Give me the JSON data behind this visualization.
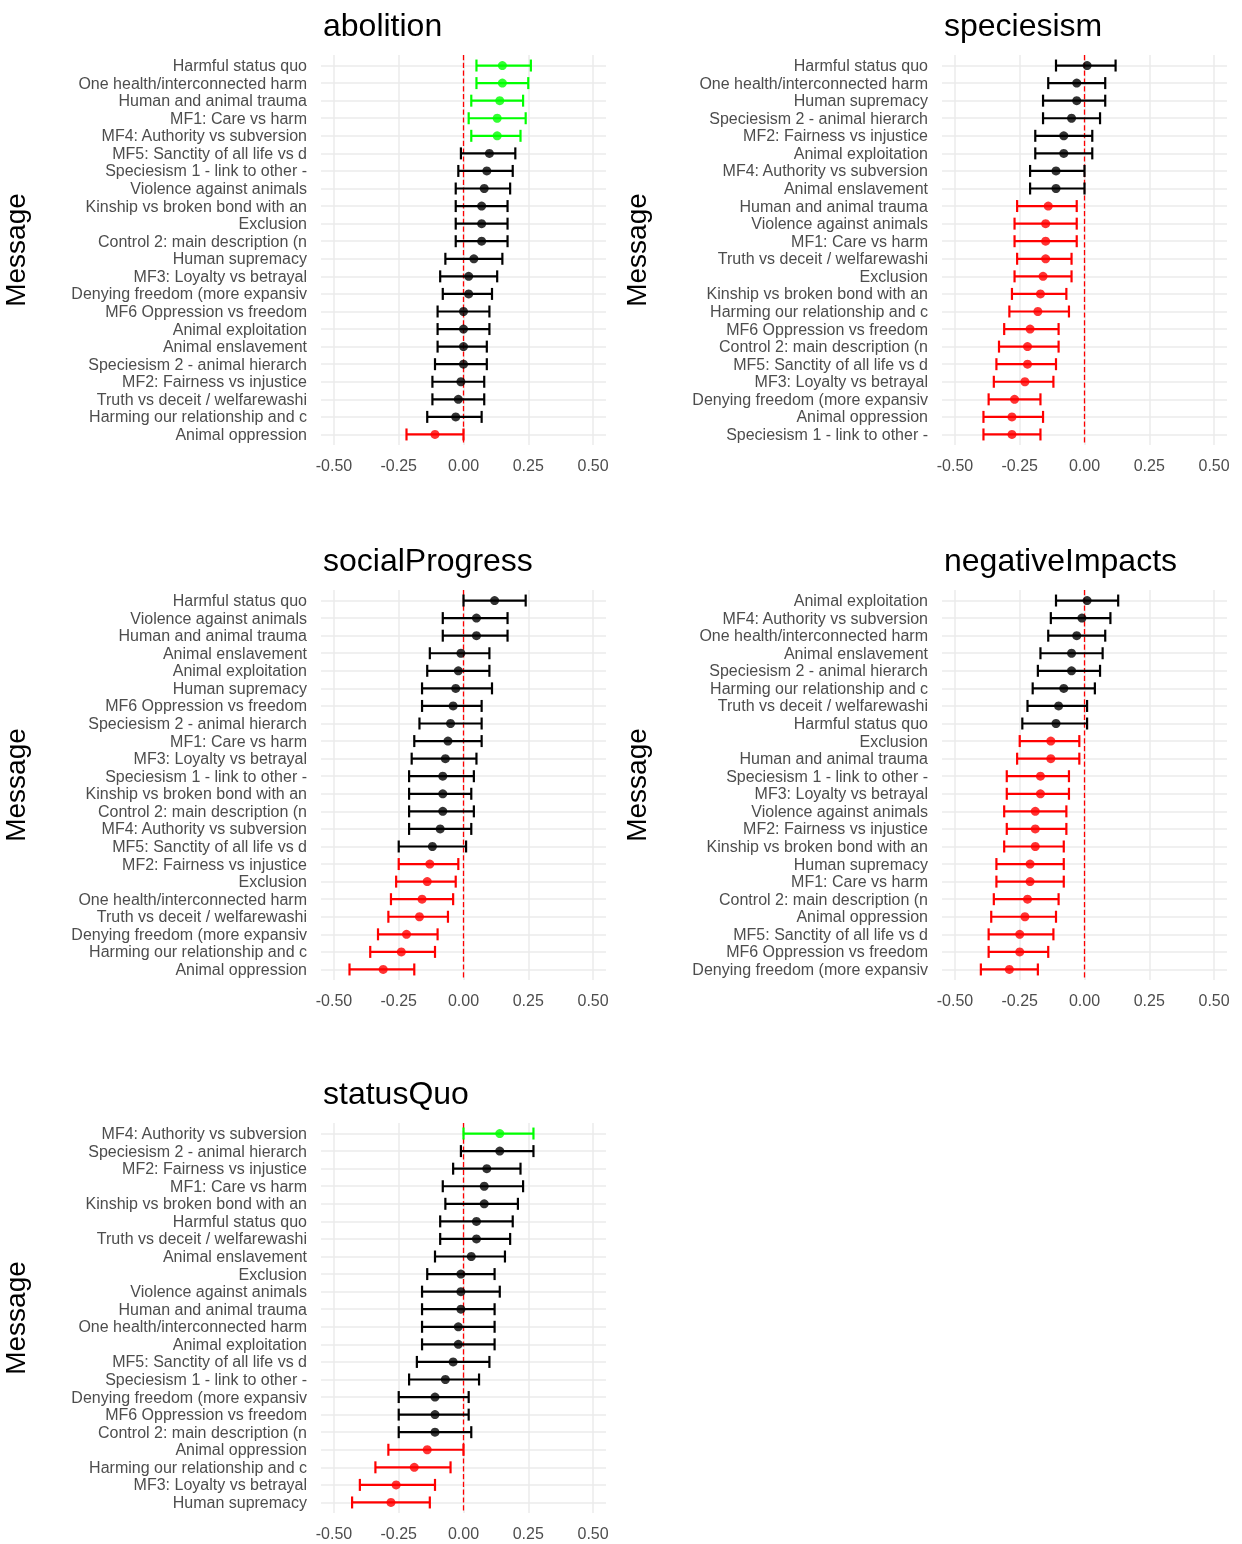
{
  "chart_data": [
    {
      "type": "scatter",
      "title": "abolition",
      "ylabel": "Message",
      "orientation": "horizontal",
      "grid": true,
      "marker": "circle",
      "xlim": [
        -0.55,
        0.55
      ],
      "xticks": [
        {
          "value": -0.5,
          "label": "-0.50"
        },
        {
          "value": -0.25,
          "label": "-0.25"
        },
        {
          "value": 0,
          "label": "0.00"
        },
        {
          "value": 0.25,
          "label": "0.25"
        },
        {
          "value": 0.5,
          "label": "0.50"
        }
      ],
      "ref_lines": [
        {
          "axis": "x",
          "value": 0,
          "color": "#ff0000",
          "line_style": "dashed"
        }
      ],
      "categories": [
        "Harmful status quo",
        "One health/interconnected harm",
        "Human and animal trauma",
        "MF1: Care vs harm",
        "MF4: Authority vs subversion",
        "MF5: Sanctity of all life vs d",
        "Speciesism 1 - link to other -",
        "Violence against animals",
        "Kinship vs broken bond with an",
        "Exclusion",
        "Control 2: main description (n",
        "Human supremacy",
        "MF3: Loyalty vs betrayal",
        "Denying freedom (more expansiv",
        "MF6 Oppression vs freedom",
        "Animal exploitation",
        "Animal enslavement",
        "Speciesism 2 - animal hierarch",
        "MF2: Fairness vs injustice",
        "Truth vs deceit / welfarewashi",
        "Harming our relationship and c",
        "Animal oppression"
      ],
      "values": [
        0.15,
        0.15,
        0.14,
        0.13,
        0.13,
        0.1,
        0.09,
        0.08,
        0.07,
        0.07,
        0.07,
        0.04,
        0.02,
        0.02,
        0.0,
        0.0,
        0.0,
        0.0,
        -0.01,
        -0.02,
        -0.03,
        -0.11
      ],
      "errors": [
        [
          0.05,
          0.26
        ],
        [
          0.05,
          0.25
        ],
        [
          0.03,
          0.23
        ],
        [
          0.02,
          0.24
        ],
        [
          0.03,
          0.22
        ],
        [
          -0.01,
          0.2
        ],
        [
          -0.02,
          0.19
        ],
        [
          -0.03,
          0.18
        ],
        [
          -0.03,
          0.17
        ],
        [
          -0.03,
          0.17
        ],
        [
          -0.03,
          0.17
        ],
        [
          -0.07,
          0.15
        ],
        [
          -0.09,
          0.13
        ],
        [
          -0.08,
          0.11
        ],
        [
          -0.1,
          0.1
        ],
        [
          -0.1,
          0.1
        ],
        [
          -0.1,
          0.09
        ],
        [
          -0.11,
          0.09
        ],
        [
          -0.12,
          0.08
        ],
        [
          -0.12,
          0.08
        ],
        [
          -0.14,
          0.07
        ],
        [
          -0.22,
          0.0
        ]
      ],
      "colors": [
        "#00ff00",
        "#00ff00",
        "#00ff00",
        "#00ff00",
        "#00ff00",
        "#000000",
        "#000000",
        "#000000",
        "#000000",
        "#000000",
        "#000000",
        "#000000",
        "#000000",
        "#000000",
        "#000000",
        "#000000",
        "#000000",
        "#000000",
        "#000000",
        "#000000",
        "#000000",
        "#ff0000"
      ]
    },
    {
      "type": "scatter",
      "title": "speciesism",
      "ylabel": "Message",
      "orientation": "horizontal",
      "grid": true,
      "marker": "circle",
      "xlim": [
        -0.55,
        0.55
      ],
      "xticks": [
        {
          "value": -0.5,
          "label": "-0.50"
        },
        {
          "value": -0.25,
          "label": "-0.25"
        },
        {
          "value": 0,
          "label": "0.00"
        },
        {
          "value": 0.25,
          "label": "0.25"
        },
        {
          "value": 0.5,
          "label": "0.50"
        }
      ],
      "ref_lines": [
        {
          "axis": "x",
          "value": 0,
          "color": "#ff0000",
          "line_style": "dashed"
        }
      ],
      "categories": [
        "Harmful status quo",
        "One health/interconnected harm",
        "Human supremacy",
        "Speciesism 2 - animal hierarch",
        "MF2: Fairness vs injustice",
        "Animal exploitation",
        "MF4: Authority vs subversion",
        "Animal enslavement",
        "Human and animal trauma",
        "Violence against animals",
        "MF1: Care vs harm",
        "Truth vs deceit / welfarewashi",
        "Exclusion",
        "Kinship vs broken bond with an",
        "Harming our relationship and c",
        "MF6 Oppression vs freedom",
        "Control 2: main description (n",
        "MF5: Sanctity of all life vs d",
        "MF3: Loyalty vs betrayal",
        "Denying freedom (more expansiv",
        "Animal oppression",
        "Speciesism 1 - link to other -"
      ],
      "values": [
        0.01,
        -0.03,
        -0.03,
        -0.05,
        -0.08,
        -0.08,
        -0.11,
        -0.11,
        -0.14,
        -0.15,
        -0.15,
        -0.15,
        -0.16,
        -0.17,
        -0.18,
        -0.21,
        -0.22,
        -0.22,
        -0.23,
        -0.27,
        -0.28,
        -0.28
      ],
      "errors": [
        [
          -0.11,
          0.12
        ],
        [
          -0.14,
          0.08
        ],
        [
          -0.16,
          0.08
        ],
        [
          -0.16,
          0.06
        ],
        [
          -0.19,
          0.03
        ],
        [
          -0.19,
          0.03
        ],
        [
          -0.21,
          0.0
        ],
        [
          -0.21,
          0.0
        ],
        [
          -0.26,
          -0.03
        ],
        [
          -0.27,
          -0.03
        ],
        [
          -0.27,
          -0.03
        ],
        [
          -0.26,
          -0.05
        ],
        [
          -0.27,
          -0.05
        ],
        [
          -0.28,
          -0.07
        ],
        [
          -0.29,
          -0.06
        ],
        [
          -0.31,
          -0.1
        ],
        [
          -0.33,
          -0.1
        ],
        [
          -0.34,
          -0.11
        ],
        [
          -0.35,
          -0.12
        ],
        [
          -0.37,
          -0.17
        ],
        [
          -0.39,
          -0.16
        ],
        [
          -0.39,
          -0.17
        ]
      ],
      "colors": [
        "#000000",
        "#000000",
        "#000000",
        "#000000",
        "#000000",
        "#000000",
        "#000000",
        "#000000",
        "#ff0000",
        "#ff0000",
        "#ff0000",
        "#ff0000",
        "#ff0000",
        "#ff0000",
        "#ff0000",
        "#ff0000",
        "#ff0000",
        "#ff0000",
        "#ff0000",
        "#ff0000",
        "#ff0000",
        "#ff0000"
      ]
    },
    {
      "type": "scatter",
      "title": "socialProgress",
      "ylabel": "Message",
      "orientation": "horizontal",
      "grid": true,
      "marker": "circle",
      "xlim": [
        -0.55,
        0.55
      ],
      "xticks": [
        {
          "value": -0.5,
          "label": "-0.50"
        },
        {
          "value": -0.25,
          "label": "-0.25"
        },
        {
          "value": 0,
          "label": "0.00"
        },
        {
          "value": 0.25,
          "label": "0.25"
        },
        {
          "value": 0.5,
          "label": "0.50"
        }
      ],
      "ref_lines": [
        {
          "axis": "x",
          "value": 0,
          "color": "#ff0000",
          "line_style": "dashed"
        }
      ],
      "categories": [
        "Harmful status quo",
        "Violence against animals",
        "Human and animal trauma",
        "Animal enslavement",
        "Animal exploitation",
        "Human supremacy",
        "MF6 Oppression vs freedom",
        "Speciesism 2 - animal hierarch",
        "MF1: Care vs harm",
        "MF3: Loyalty vs betrayal",
        "Speciesism 1 - link to other -",
        "Kinship vs broken bond with an",
        "Control 2: main description (n",
        "MF4: Authority vs subversion",
        "MF5: Sanctity of all life vs d",
        "MF2: Fairness vs injustice",
        "Exclusion",
        "One health/interconnected harm",
        "Truth vs deceit / welfarewashi",
        "Denying freedom (more expansiv",
        "Harming our relationship and c",
        "Animal oppression"
      ],
      "values": [
        0.12,
        0.05,
        0.05,
        -0.01,
        -0.02,
        -0.03,
        -0.04,
        -0.05,
        -0.06,
        -0.07,
        -0.08,
        -0.08,
        -0.08,
        -0.09,
        -0.12,
        -0.13,
        -0.14,
        -0.16,
        -0.17,
        -0.22,
        -0.24,
        -0.31
      ],
      "errors": [
        [
          0.0,
          0.24
        ],
        [
          -0.08,
          0.17
        ],
        [
          -0.08,
          0.17
        ],
        [
          -0.13,
          0.1
        ],
        [
          -0.14,
          0.1
        ],
        [
          -0.16,
          0.11
        ],
        [
          -0.16,
          0.07
        ],
        [
          -0.17,
          0.07
        ],
        [
          -0.19,
          0.07
        ],
        [
          -0.2,
          0.05
        ],
        [
          -0.21,
          0.04
        ],
        [
          -0.21,
          0.03
        ],
        [
          -0.21,
          0.04
        ],
        [
          -0.21,
          0.03
        ],
        [
          -0.25,
          0.01
        ],
        [
          -0.25,
          -0.02
        ],
        [
          -0.26,
          -0.03
        ],
        [
          -0.28,
          -0.04
        ],
        [
          -0.29,
          -0.06
        ],
        [
          -0.33,
          -0.1
        ],
        [
          -0.36,
          -0.11
        ],
        [
          -0.44,
          -0.19
        ]
      ],
      "colors": [
        "#000000",
        "#000000",
        "#000000",
        "#000000",
        "#000000",
        "#000000",
        "#000000",
        "#000000",
        "#000000",
        "#000000",
        "#000000",
        "#000000",
        "#000000",
        "#000000",
        "#000000",
        "#ff0000",
        "#ff0000",
        "#ff0000",
        "#ff0000",
        "#ff0000",
        "#ff0000",
        "#ff0000"
      ]
    },
    {
      "type": "scatter",
      "title": "negativeImpacts",
      "ylabel": "Message",
      "orientation": "horizontal",
      "grid": true,
      "marker": "circle",
      "xlim": [
        -0.55,
        0.55
      ],
      "xticks": [
        {
          "value": -0.5,
          "label": "-0.50"
        },
        {
          "value": -0.25,
          "label": "-0.25"
        },
        {
          "value": 0,
          "label": "0.00"
        },
        {
          "value": 0.25,
          "label": "0.25"
        },
        {
          "value": 0.5,
          "label": "0.50"
        }
      ],
      "ref_lines": [
        {
          "axis": "x",
          "value": 0,
          "color": "#ff0000",
          "line_style": "dashed"
        }
      ],
      "categories": [
        "Animal exploitation",
        "MF4: Authority vs subversion",
        "One health/interconnected harm",
        "Animal enslavement",
        "Speciesism 2 - animal hierarch",
        "Harming our relationship and c",
        "Truth vs deceit / welfarewashi",
        "Harmful status quo",
        "Exclusion",
        "Human and animal trauma",
        "Speciesism 1 - link to other -",
        "MF3: Loyalty vs betrayal",
        "Violence against animals",
        "MF2: Fairness vs injustice",
        "Kinship vs broken bond with an",
        "Human supremacy",
        "MF1: Care vs harm",
        "Control 2: main description (n",
        "Animal oppression",
        "MF5: Sanctity of all life vs d",
        "MF6 Oppression vs freedom",
        "Denying freedom (more expansiv"
      ],
      "values": [
        0.01,
        -0.01,
        -0.03,
        -0.05,
        -0.05,
        -0.08,
        -0.1,
        -0.11,
        -0.13,
        -0.13,
        -0.17,
        -0.17,
        -0.19,
        -0.19,
        -0.19,
        -0.21,
        -0.21,
        -0.22,
        -0.23,
        -0.25,
        -0.25,
        -0.29
      ],
      "errors": [
        [
          -0.11,
          0.13
        ],
        [
          -0.13,
          0.1
        ],
        [
          -0.14,
          0.08
        ],
        [
          -0.17,
          0.07
        ],
        [
          -0.18,
          0.06
        ],
        [
          -0.2,
          0.04
        ],
        [
          -0.22,
          0.01
        ],
        [
          -0.24,
          0.01
        ],
        [
          -0.25,
          -0.02
        ],
        [
          -0.26,
          -0.02
        ],
        [
          -0.3,
          -0.06
        ],
        [
          -0.3,
          -0.06
        ],
        [
          -0.31,
          -0.07
        ],
        [
          -0.3,
          -0.07
        ],
        [
          -0.31,
          -0.08
        ],
        [
          -0.34,
          -0.08
        ],
        [
          -0.34,
          -0.08
        ],
        [
          -0.35,
          -0.1
        ],
        [
          -0.36,
          -0.11
        ],
        [
          -0.37,
          -0.12
        ],
        [
          -0.37,
          -0.14
        ],
        [
          -0.4,
          -0.18
        ]
      ],
      "colors": [
        "#000000",
        "#000000",
        "#000000",
        "#000000",
        "#000000",
        "#000000",
        "#000000",
        "#000000",
        "#ff0000",
        "#ff0000",
        "#ff0000",
        "#ff0000",
        "#ff0000",
        "#ff0000",
        "#ff0000",
        "#ff0000",
        "#ff0000",
        "#ff0000",
        "#ff0000",
        "#ff0000",
        "#ff0000",
        "#ff0000"
      ]
    },
    {
      "type": "scatter",
      "title": "statusQuo",
      "ylabel": "Message",
      "orientation": "horizontal",
      "grid": true,
      "marker": "circle",
      "xlim": [
        -0.55,
        0.55
      ],
      "xticks": [
        {
          "value": -0.5,
          "label": "-0.50"
        },
        {
          "value": -0.25,
          "label": "-0.25"
        },
        {
          "value": 0,
          "label": "0.00"
        },
        {
          "value": 0.25,
          "label": "0.25"
        },
        {
          "value": 0.5,
          "label": "0.50"
        }
      ],
      "ref_lines": [
        {
          "axis": "x",
          "value": 0,
          "color": "#ff0000",
          "line_style": "dashed"
        }
      ],
      "categories": [
        "MF4: Authority vs subversion",
        "Speciesism 2 - animal hierarch",
        "MF2: Fairness vs injustice",
        "MF1: Care vs harm",
        "Kinship vs broken bond with an",
        "Harmful status quo",
        "Truth vs deceit / welfarewashi",
        "Animal enslavement",
        "Exclusion",
        "Violence against animals",
        "Human and animal trauma",
        "One health/interconnected harm",
        "Animal exploitation",
        "MF5: Sanctity of all life vs d",
        "Speciesism 1 - link to other -",
        "Denying freedom (more expansiv",
        "MF6 Oppression vs freedom",
        "Control 2: main description (n",
        "Animal oppression",
        "Harming our relationship and c",
        "MF3: Loyalty vs betrayal",
        "Human supremacy"
      ],
      "values": [
        0.14,
        0.14,
        0.09,
        0.08,
        0.08,
        0.05,
        0.05,
        0.03,
        -0.01,
        -0.01,
        -0.01,
        -0.02,
        -0.02,
        -0.04,
        -0.07,
        -0.11,
        -0.11,
        -0.11,
        -0.14,
        -0.19,
        -0.26,
        -0.28
      ],
      "errors": [
        [
          0.0,
          0.27
        ],
        [
          -0.01,
          0.27
        ],
        [
          -0.04,
          0.22
        ],
        [
          -0.08,
          0.23
        ],
        [
          -0.07,
          0.21
        ],
        [
          -0.09,
          0.19
        ],
        [
          -0.09,
          0.18
        ],
        [
          -0.11,
          0.16
        ],
        [
          -0.14,
          0.12
        ],
        [
          -0.16,
          0.14
        ],
        [
          -0.16,
          0.12
        ],
        [
          -0.16,
          0.12
        ],
        [
          -0.16,
          0.12
        ],
        [
          -0.18,
          0.1
        ],
        [
          -0.21,
          0.06
        ],
        [
          -0.25,
          0.02
        ],
        [
          -0.25,
          0.02
        ],
        [
          -0.25,
          0.03
        ],
        [
          -0.29,
          0.0
        ],
        [
          -0.34,
          -0.05
        ],
        [
          -0.4,
          -0.11
        ],
        [
          -0.43,
          -0.13
        ]
      ],
      "colors": [
        "#00ff00",
        "#000000",
        "#000000",
        "#000000",
        "#000000",
        "#000000",
        "#000000",
        "#000000",
        "#000000",
        "#000000",
        "#000000",
        "#000000",
        "#000000",
        "#000000",
        "#000000",
        "#000000",
        "#000000",
        "#000000",
        "#ff0000",
        "#ff0000",
        "#ff0000",
        "#ff0000"
      ]
    }
  ]
}
